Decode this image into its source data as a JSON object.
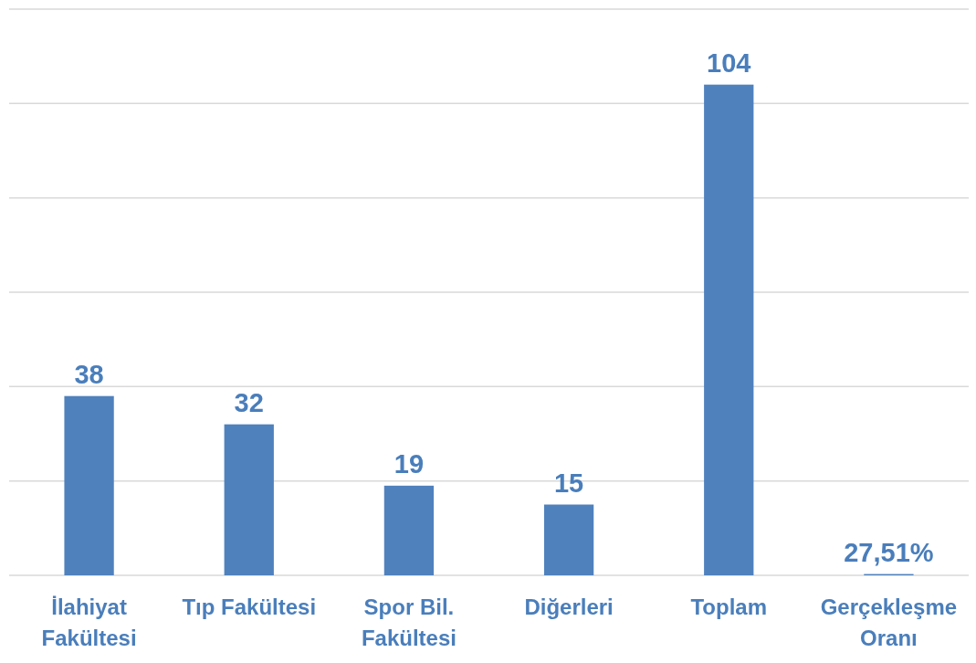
{
  "chart_data": {
    "type": "bar",
    "categories": [
      "İlahiyat Fakültesi",
      "Tıp Fakültesi",
      "Spor Bil. Fakültesi",
      "Diğerleri",
      "Toplam",
      "Gerçekleşme Oranı"
    ],
    "values": [
      38,
      32,
      19,
      15,
      104,
      0.2751
    ],
    "value_labels": [
      "38",
      "32",
      "19",
      "15",
      "104",
      "27,51%"
    ],
    "color": "#4f81bd",
    "ylim": [
      0,
      120
    ],
    "yticks": [
      {
        "value": 0,
        "label": null
      },
      {
        "value": 20,
        "label": null
      },
      {
        "value": 40,
        "label": null
      },
      {
        "value": 60,
        "label": null
      },
      {
        "value": 80,
        "label": null
      },
      {
        "value": 100,
        "label": null
      },
      {
        "value": 120,
        "label": null
      }
    ],
    "grid": "y",
    "tick_labels": "x"
  }
}
